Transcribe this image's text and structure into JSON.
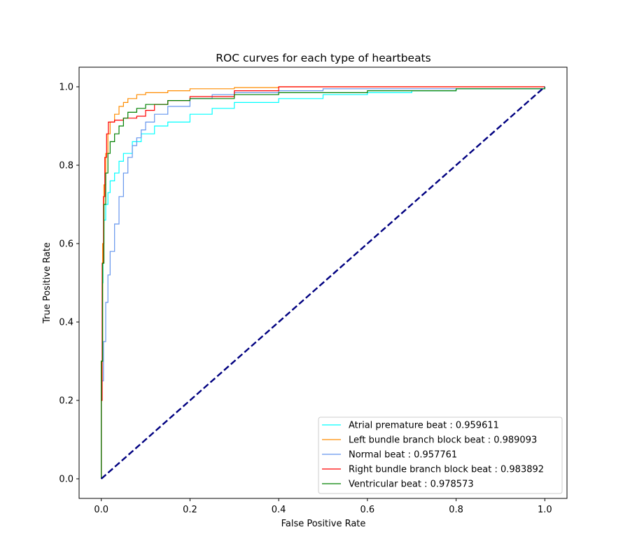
{
  "chart_data": {
    "type": "line",
    "title": "ROC curves for each type of heartbeats",
    "xlabel": "False Positive Rate",
    "ylabel": "True Positive Rate",
    "xlim": [
      -0.05,
      1.05
    ],
    "ylim": [
      -0.05,
      1.05
    ],
    "xticks": [
      0.0,
      0.2,
      0.4,
      0.6,
      0.8,
      1.0
    ],
    "yticks": [
      0.0,
      0.2,
      0.4,
      0.6,
      0.8,
      1.0
    ],
    "xtick_labels": [
      "0.0",
      "0.2",
      "0.4",
      "0.6",
      "0.8",
      "1.0"
    ],
    "ytick_labels": [
      "0.0",
      "0.2",
      "0.4",
      "0.6",
      "0.8",
      "1.0"
    ],
    "grid": false,
    "legend_position": "lower-right",
    "diagonal": {
      "color": "#000080",
      "style": "dashed",
      "points": [
        [
          0,
          0
        ],
        [
          1,
          1
        ]
      ]
    },
    "series": [
      {
        "name": "Atrial premature beat : 0.959611",
        "color": "#00ffff",
        "points": [
          [
            0,
            0
          ],
          [
            0,
            0.3
          ],
          [
            0.002,
            0.5
          ],
          [
            0.004,
            0.6
          ],
          [
            0.006,
            0.66
          ],
          [
            0.01,
            0.7
          ],
          [
            0.015,
            0.73
          ],
          [
            0.02,
            0.76
          ],
          [
            0.03,
            0.78
          ],
          [
            0.04,
            0.81
          ],
          [
            0.05,
            0.83
          ],
          [
            0.07,
            0.86
          ],
          [
            0.09,
            0.88
          ],
          [
            0.12,
            0.9
          ],
          [
            0.15,
            0.91
          ],
          [
            0.2,
            0.93
          ],
          [
            0.25,
            0.945
          ],
          [
            0.3,
            0.96
          ],
          [
            0.4,
            0.97
          ],
          [
            0.5,
            0.98
          ],
          [
            0.6,
            0.985
          ],
          [
            0.7,
            0.99
          ],
          [
            0.8,
            0.995
          ],
          [
            1,
            1
          ]
        ]
      },
      {
        "name": "Left bundle branch block beat : 0.989093",
        "color": "#ff8c00",
        "points": [
          [
            0,
            0
          ],
          [
            0,
            0.3
          ],
          [
            0.003,
            0.6
          ],
          [
            0.006,
            0.75
          ],
          [
            0.01,
            0.83
          ],
          [
            0.015,
            0.88
          ],
          [
            0.02,
            0.91
          ],
          [
            0.03,
            0.93
          ],
          [
            0.04,
            0.95
          ],
          [
            0.05,
            0.96
          ],
          [
            0.06,
            0.97
          ],
          [
            0.08,
            0.98
          ],
          [
            0.1,
            0.985
          ],
          [
            0.15,
            0.99
          ],
          [
            0.2,
            0.995
          ],
          [
            0.3,
            0.998
          ],
          [
            0.4,
            1
          ],
          [
            1,
            1
          ]
        ]
      },
      {
        "name": "Normal beat : 0.957761",
        "color": "#6495ed",
        "points": [
          [
            0,
            0
          ],
          [
            0,
            0.25
          ],
          [
            0.005,
            0.35
          ],
          [
            0.01,
            0.45
          ],
          [
            0.015,
            0.52
          ],
          [
            0.02,
            0.58
          ],
          [
            0.03,
            0.65
          ],
          [
            0.04,
            0.72
          ],
          [
            0.05,
            0.78
          ],
          [
            0.06,
            0.82
          ],
          [
            0.07,
            0.85
          ],
          [
            0.08,
            0.87
          ],
          [
            0.09,
            0.89
          ],
          [
            0.1,
            0.91
          ],
          [
            0.12,
            0.93
          ],
          [
            0.15,
            0.95
          ],
          [
            0.2,
            0.97
          ],
          [
            0.25,
            0.98
          ],
          [
            0.3,
            0.985
          ],
          [
            0.4,
            0.99
          ],
          [
            0.5,
            0.995
          ],
          [
            1,
            1
          ]
        ]
      },
      {
        "name": "Right bundle branch block beat : 0.983892",
        "color": "#ff0000",
        "points": [
          [
            0,
            0
          ],
          [
            0,
            0.2
          ],
          [
            0.002,
            0.55
          ],
          [
            0.005,
            0.72
          ],
          [
            0.008,
            0.82
          ],
          [
            0.012,
            0.88
          ],
          [
            0.016,
            0.91
          ],
          [
            0.03,
            0.915
          ],
          [
            0.05,
            0.92
          ],
          [
            0.08,
            0.925
          ],
          [
            0.1,
            0.94
          ],
          [
            0.12,
            0.955
          ],
          [
            0.15,
            0.965
          ],
          [
            0.2,
            0.975
          ],
          [
            0.3,
            0.99
          ],
          [
            0.4,
            1
          ],
          [
            1,
            1
          ]
        ]
      },
      {
        "name": "Ventricular beat : 0.978573",
        "color": "#008000",
        "points": [
          [
            0,
            0
          ],
          [
            0,
            0.3
          ],
          [
            0.003,
            0.55
          ],
          [
            0.006,
            0.7
          ],
          [
            0.01,
            0.78
          ],
          [
            0.015,
            0.83
          ],
          [
            0.02,
            0.86
          ],
          [
            0.03,
            0.88
          ],
          [
            0.04,
            0.9
          ],
          [
            0.05,
            0.92
          ],
          [
            0.06,
            0.935
          ],
          [
            0.08,
            0.945
          ],
          [
            0.1,
            0.955
          ],
          [
            0.15,
            0.965
          ],
          [
            0.2,
            0.97
          ],
          [
            0.3,
            0.98
          ],
          [
            0.4,
            0.985
          ],
          [
            0.6,
            0.99
          ],
          [
            0.8,
            0.995
          ],
          [
            1,
            1
          ]
        ]
      }
    ]
  }
}
